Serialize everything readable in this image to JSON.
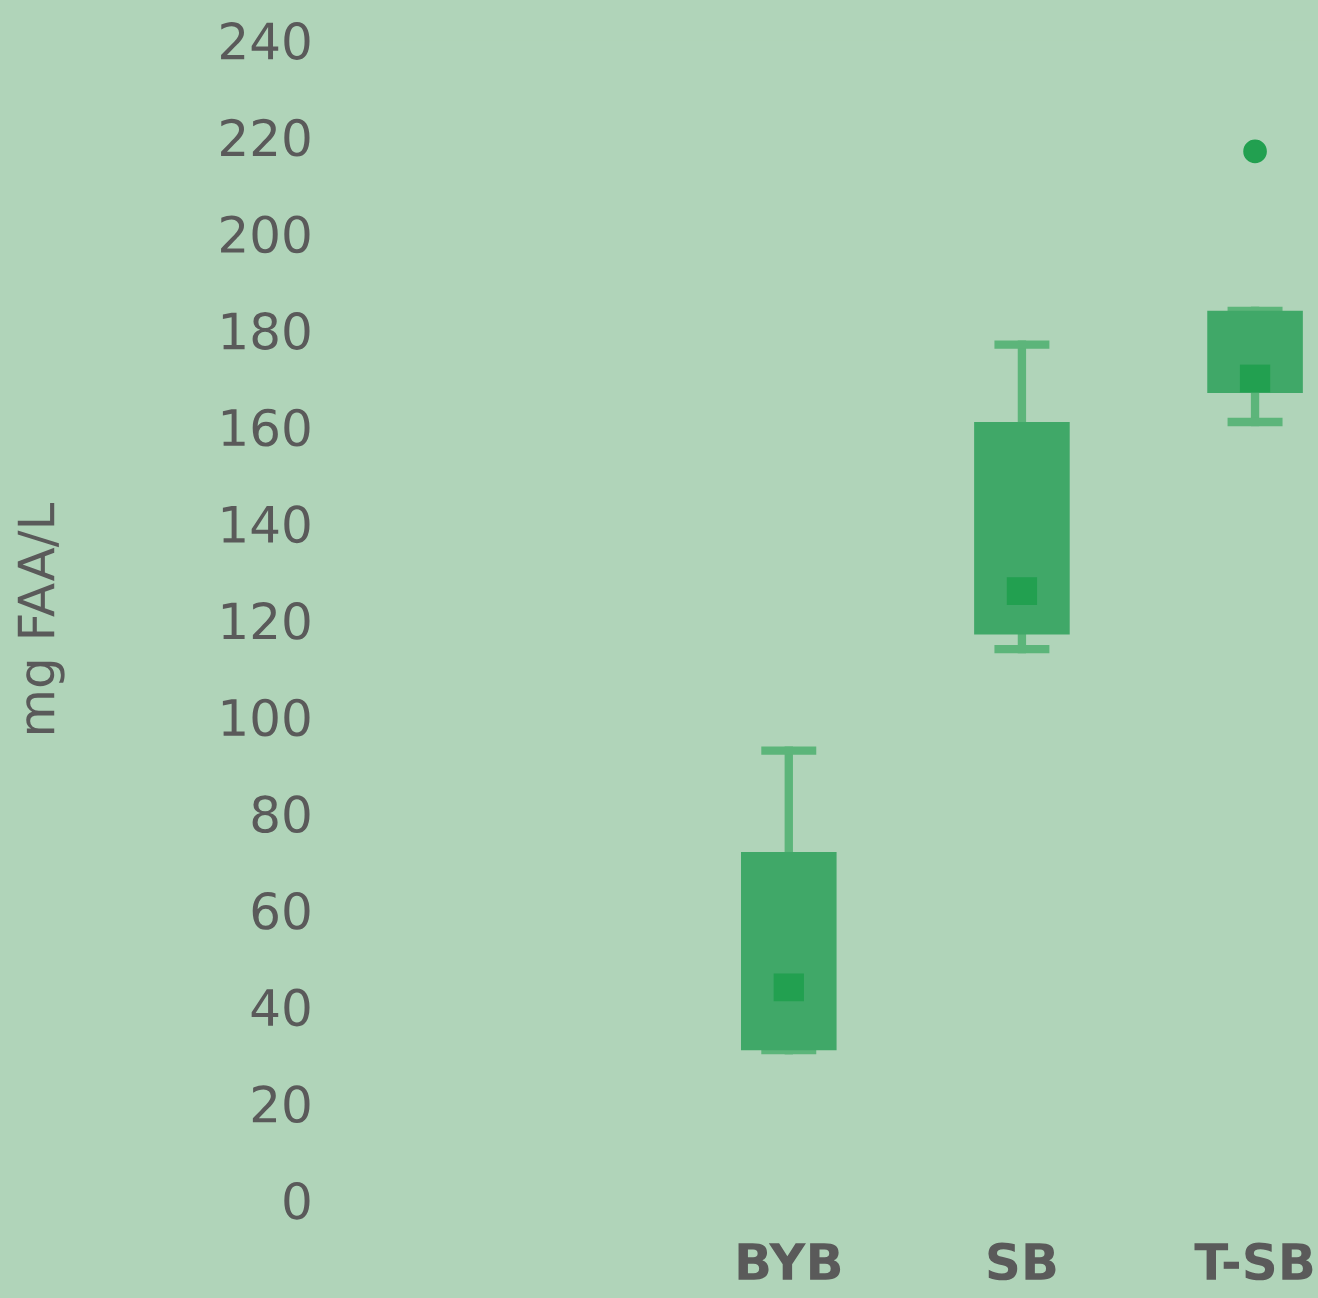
{
  "chart_data": {
    "type": "box",
    "ylabel": "mg FAA/L",
    "categories": [
      "BYB",
      "SB",
      "T-SB"
    ],
    "boxes": [
      {
        "low": 31,
        "q1": 31,
        "median": 44,
        "q3": 72,
        "high": 93
      },
      {
        "low": 114,
        "q1": 117,
        "median": 126,
        "q3": 161,
        "high": 177
      },
      {
        "low": 161,
        "q1": 167,
        "median": 170,
        "q3": 184,
        "high": 184,
        "outliers": [
          217
        ]
      }
    ],
    "color": "#40a868",
    "ylim": [
      0,
      240
    ],
    "yticks": [
      0,
      20,
      40,
      60,
      80,
      100,
      120,
      140,
      160,
      180,
      200,
      220,
      240
    ],
    "grid": false
  }
}
